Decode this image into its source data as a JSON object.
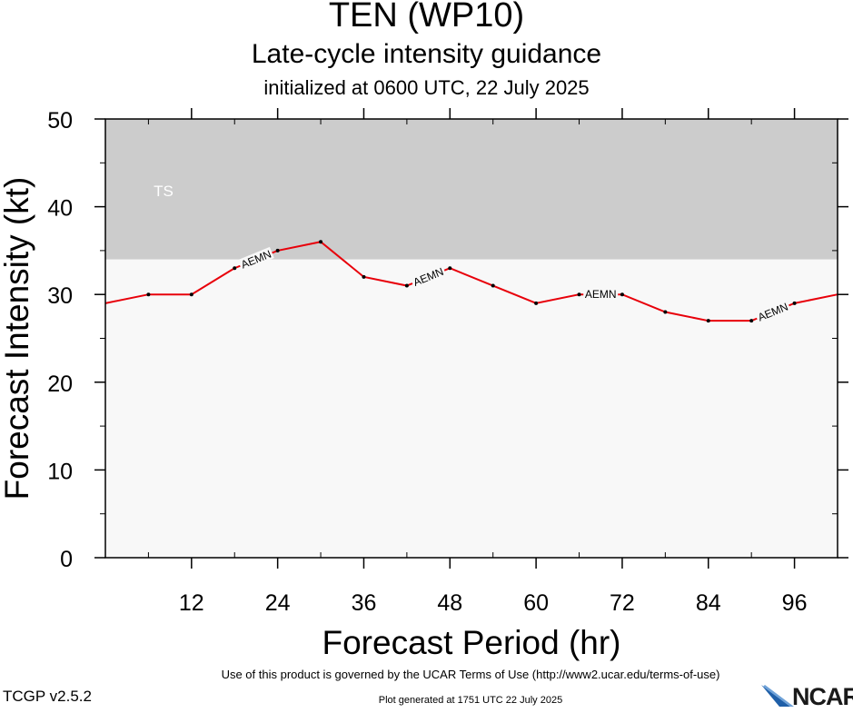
{
  "header": {
    "title": "TEN (WP10)",
    "subtitle": "Late-cycle intensity guidance",
    "initialized": "initialized at 0600 UTC, 22 July 2025"
  },
  "chart_data": {
    "type": "line",
    "xlabel": "Forecast Period (hr)",
    "ylabel": "Forecast Intensity (kt)",
    "xlim": [
      0,
      102
    ],
    "ylim": [
      0,
      50
    ],
    "x_ticks": [
      12,
      24,
      36,
      48,
      60,
      72,
      84,
      96
    ],
    "y_ticks": [
      0,
      10,
      20,
      30,
      40,
      50
    ],
    "grid": false,
    "legend": "none",
    "bands": [
      {
        "label": "TS",
        "y_range": [
          34,
          50
        ],
        "color": "#cccccc"
      }
    ],
    "plot_background": "#f8f8f8",
    "series": [
      {
        "name": "AEMN",
        "color": "#e8000a",
        "x": [
          0,
          6,
          12,
          18,
          24,
          30,
          36,
          42,
          48,
          54,
          60,
          66,
          72,
          78,
          84,
          90,
          96,
          102
        ],
        "y": [
          29,
          30,
          30,
          33,
          35,
          36,
          32,
          31,
          33,
          31,
          29,
          30,
          30,
          28,
          27,
          27,
          29,
          30
        ]
      }
    ]
  },
  "footer": {
    "terms": "Use of this product is governed by the UCAR Terms of Use (http://www2.ucar.edu/terms-of-use)",
    "version": "TCGP v2.5.2",
    "generated": "Plot generated at 1751 UTC   22 July 2025",
    "logo_text": "NCAR"
  }
}
